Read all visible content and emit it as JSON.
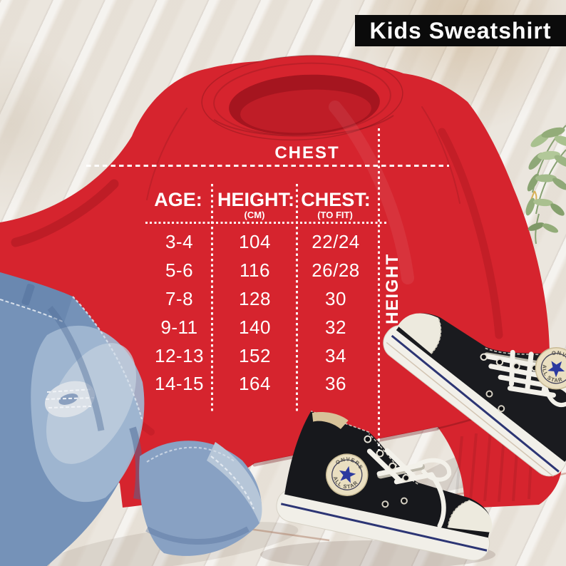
{
  "overlay_label": {
    "text": "Kids Sweatshirt"
  },
  "size_chart": {
    "top_axis_label": "CHEST",
    "side_axis_label": "HEIGHT",
    "columns": [
      {
        "header": "AGE:",
        "subheader": ""
      },
      {
        "header": "HEIGHT:",
        "subheader": "(CM)"
      },
      {
        "header": "CHEST:",
        "subheader": "(TO FIT)"
      }
    ],
    "rows": [
      [
        "3-4",
        "104",
        "22/24"
      ],
      [
        "5-6",
        "116",
        "26/28"
      ],
      [
        "7-8",
        "128",
        "30"
      ],
      [
        "9-11",
        "140",
        "32"
      ],
      [
        "12-13",
        "152",
        "34"
      ],
      [
        "14-15",
        "164",
        "36"
      ]
    ]
  },
  "chart_data": {
    "type": "table",
    "title": "Kids Sweatshirt",
    "columns": [
      "AGE:",
      "HEIGHT: (CM)",
      "CHEST: (TO FIT)"
    ],
    "rows": [
      [
        "3-4",
        "104",
        "22/24"
      ],
      [
        "5-6",
        "116",
        "26/28"
      ],
      [
        "7-8",
        "128",
        "30"
      ],
      [
        "9-11",
        "140",
        "32"
      ],
      [
        "12-13",
        "152",
        "34"
      ],
      [
        "14-15",
        "164",
        "36"
      ]
    ],
    "annotations": [
      "CHEST",
      "HEIGHT"
    ]
  },
  "sneaker_patch": {
    "top_text": "CONVERSE",
    "bottom_text": "ALL STAR"
  },
  "colors": {
    "sweatshirt_red": "#d6242e",
    "label_black": "#0b0b0b",
    "chart_text": "#ffffff",
    "denim_blue": "#7592b8",
    "wood_white": "#e9e4dc",
    "sole_white": "#f1efe8",
    "patch_cream": "#eadfc1",
    "star_blue": "#2c3a9f",
    "leaf_green": "#9cb584"
  }
}
